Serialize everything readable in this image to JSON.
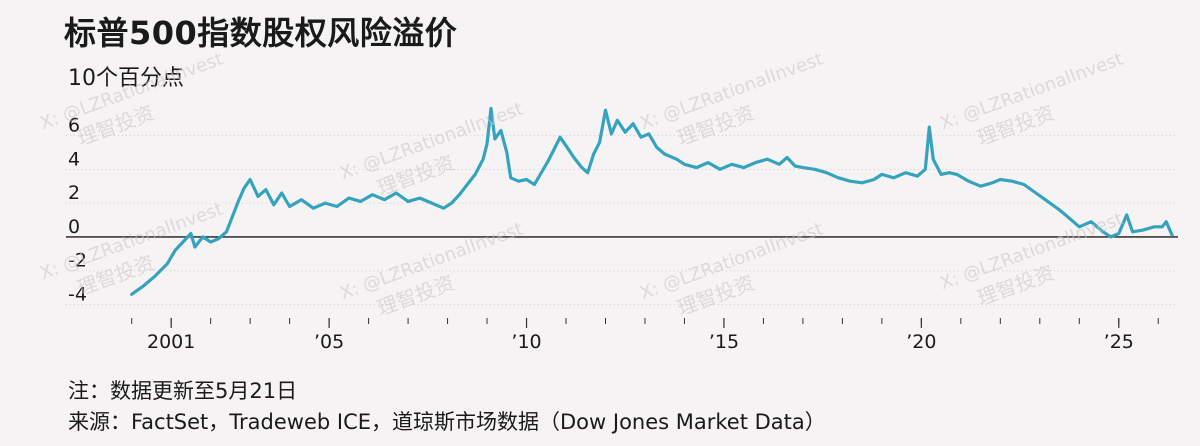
{
  "title": "标普500指数股权风险溢价",
  "subtitle": "10个百分点",
  "notes": {
    "note": "注：数据更新至5月21日",
    "source": "来源：FactSet，Tradeweb ICE，道琼斯市场数据（Dow Jones Market Data）"
  },
  "watermark": {
    "line1": "X: @LZRationalInvest",
    "line2": "理智投资"
  },
  "colors": {
    "line": "#35a3bd",
    "zero_line": "#1a1a1a",
    "grid": "#cfcfcf"
  },
  "chart_data": {
    "type": "line",
    "title": "标普500指数股权风险溢价",
    "ylabel": "10个百分点",
    "xlabel": "",
    "xlim": [
      1999.4,
      2026.5
    ],
    "ylim": [
      -4.8,
      8.4
    ],
    "y_ticks": [
      {
        "value": 6,
        "label": "6"
      },
      {
        "value": 4,
        "label": "4"
      },
      {
        "value": 2,
        "label": "2"
      },
      {
        "value": 0,
        "label": "0"
      },
      {
        "value": -2,
        "label": "-2"
      },
      {
        "value": -4,
        "label": "-4"
      }
    ],
    "x_ticks": [
      {
        "value": 2001,
        "label": "2001"
      },
      {
        "value": 2005,
        "label": "’05"
      },
      {
        "value": 2010,
        "label": "’10"
      },
      {
        "value": 2015,
        "label": "’15"
      },
      {
        "value": 2020,
        "label": "’20"
      },
      {
        "value": 2025,
        "label": "’25"
      }
    ],
    "grid": true,
    "series": [
      {
        "values": [
          [
            2000.0,
            -3.4
          ],
          [
            2000.3,
            -2.9
          ],
          [
            2000.6,
            -2.3
          ],
          [
            2000.9,
            -1.6
          ],
          [
            2001.1,
            -0.8
          ],
          [
            2001.3,
            -0.3
          ],
          [
            2001.5,
            0.2
          ],
          [
            2001.6,
            -0.6
          ],
          [
            2001.8,
            0.0
          ],
          [
            2002.0,
            -0.3
          ],
          [
            2002.2,
            -0.1
          ],
          [
            2002.4,
            0.3
          ],
          [
            2002.55,
            1.2
          ],
          [
            2002.7,
            2.1
          ],
          [
            2002.85,
            2.9
          ],
          [
            2003.0,
            3.4
          ],
          [
            2003.2,
            2.4
          ],
          [
            2003.4,
            2.8
          ],
          [
            2003.6,
            1.9
          ],
          [
            2003.8,
            2.6
          ],
          [
            2004.0,
            1.8
          ],
          [
            2004.3,
            2.2
          ],
          [
            2004.6,
            1.7
          ],
          [
            2004.9,
            2.0
          ],
          [
            2005.2,
            1.8
          ],
          [
            2005.5,
            2.3
          ],
          [
            2005.8,
            2.1
          ],
          [
            2006.1,
            2.5
          ],
          [
            2006.4,
            2.2
          ],
          [
            2006.7,
            2.6
          ],
          [
            2007.0,
            2.1
          ],
          [
            2007.3,
            2.3
          ],
          [
            2007.6,
            2.0
          ],
          [
            2007.9,
            1.7
          ],
          [
            2008.1,
            2.0
          ],
          [
            2008.3,
            2.5
          ],
          [
            2008.5,
            3.1
          ],
          [
            2008.7,
            3.7
          ],
          [
            2008.9,
            4.6
          ],
          [
            2009.0,
            5.5
          ],
          [
            2009.1,
            7.6
          ],
          [
            2009.2,
            5.8
          ],
          [
            2009.35,
            6.3
          ],
          [
            2009.5,
            5.0
          ],
          [
            2009.6,
            3.5
          ],
          [
            2009.8,
            3.3
          ],
          [
            2010.0,
            3.4
          ],
          [
            2010.2,
            3.1
          ],
          [
            2010.4,
            3.9
          ],
          [
            2010.55,
            4.5
          ],
          [
            2010.7,
            5.2
          ],
          [
            2010.85,
            5.9
          ],
          [
            2011.0,
            5.4
          ],
          [
            2011.2,
            4.7
          ],
          [
            2011.4,
            4.1
          ],
          [
            2011.55,
            3.8
          ],
          [
            2011.7,
            4.9
          ],
          [
            2011.85,
            5.6
          ],
          [
            2012.0,
            7.5
          ],
          [
            2012.15,
            6.1
          ],
          [
            2012.3,
            6.9
          ],
          [
            2012.5,
            6.2
          ],
          [
            2012.7,
            6.7
          ],
          [
            2012.9,
            5.9
          ],
          [
            2013.1,
            6.1
          ],
          [
            2013.3,
            5.3
          ],
          [
            2013.5,
            4.9
          ],
          [
            2013.8,
            4.6
          ],
          [
            2014.0,
            4.3
          ],
          [
            2014.3,
            4.1
          ],
          [
            2014.6,
            4.4
          ],
          [
            2014.9,
            4.0
          ],
          [
            2015.2,
            4.3
          ],
          [
            2015.5,
            4.1
          ],
          [
            2015.8,
            4.4
          ],
          [
            2016.1,
            4.6
          ],
          [
            2016.4,
            4.3
          ],
          [
            2016.6,
            4.7
          ],
          [
            2016.8,
            4.2
          ],
          [
            2017.0,
            4.1
          ],
          [
            2017.3,
            4.0
          ],
          [
            2017.6,
            3.8
          ],
          [
            2017.9,
            3.5
          ],
          [
            2018.2,
            3.3
          ],
          [
            2018.5,
            3.2
          ],
          [
            2018.8,
            3.4
          ],
          [
            2019.0,
            3.7
          ],
          [
            2019.3,
            3.5
          ],
          [
            2019.6,
            3.8
          ],
          [
            2019.9,
            3.6
          ],
          [
            2020.1,
            4.0
          ],
          [
            2020.2,
            6.5
          ],
          [
            2020.3,
            4.6
          ],
          [
            2020.5,
            3.7
          ],
          [
            2020.7,
            3.8
          ],
          [
            2020.9,
            3.7
          ],
          [
            2021.2,
            3.3
          ],
          [
            2021.5,
            3.0
          ],
          [
            2021.8,
            3.2
          ],
          [
            2022.0,
            3.4
          ],
          [
            2022.3,
            3.3
          ],
          [
            2022.6,
            3.1
          ],
          [
            2022.9,
            2.6
          ],
          [
            2023.2,
            2.1
          ],
          [
            2023.5,
            1.6
          ],
          [
            2023.8,
            1.0
          ],
          [
            2024.0,
            0.6
          ],
          [
            2024.3,
            0.9
          ],
          [
            2024.6,
            0.3
          ],
          [
            2024.8,
            0.0
          ],
          [
            2025.0,
            0.2
          ],
          [
            2025.2,
            1.3
          ],
          [
            2025.35,
            0.3
          ],
          [
            2025.6,
            0.4
          ],
          [
            2025.9,
            0.6
          ],
          [
            2026.1,
            0.6
          ],
          [
            2026.2,
            0.9
          ],
          [
            2026.35,
            0.1
          ]
        ]
      }
    ]
  }
}
